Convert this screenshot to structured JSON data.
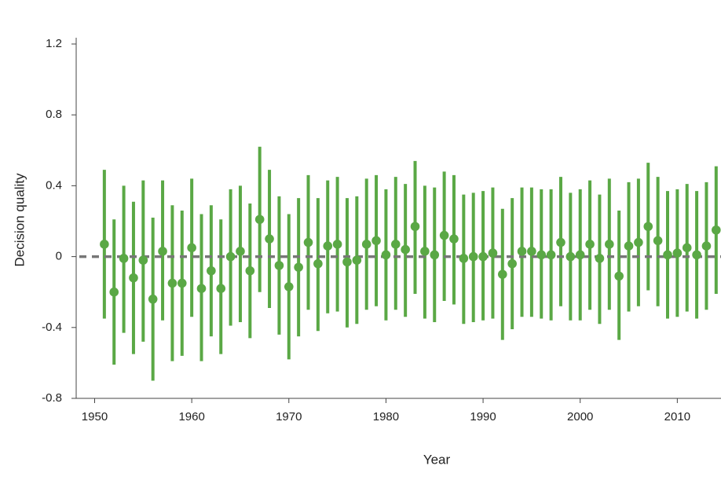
{
  "chart_data": {
    "type": "errorbar",
    "x_label": "Year",
    "y_label": "Decision quality",
    "x": [
      1951,
      1952,
      1953,
      1954,
      1955,
      1956,
      1957,
      1958,
      1959,
      1960,
      1961,
      1962,
      1963,
      1964,
      1965,
      1966,
      1967,
      1968,
      1969,
      1970,
      1971,
      1972,
      1973,
      1974,
      1975,
      1976,
      1977,
      1978,
      1979,
      1980,
      1981,
      1982,
      1983,
      1984,
      1985,
      1986,
      1987,
      1988,
      1989,
      1990,
      1991,
      1992,
      1993,
      1994,
      1995,
      1996,
      1997,
      1998,
      1999,
      2000,
      2001,
      2002,
      2003,
      2004,
      2005,
      2006,
      2007,
      2008,
      2009,
      2010,
      2011,
      2012,
      2013,
      2014
    ],
    "values": [
      0.07,
      -0.2,
      -0.01,
      -0.12,
      -0.02,
      -0.24,
      0.03,
      -0.15,
      -0.15,
      0.05,
      -0.18,
      -0.08,
      -0.18,
      0.0,
      0.03,
      -0.08,
      0.21,
      0.1,
      -0.05,
      -0.17,
      -0.06,
      0.08,
      -0.04,
      0.06,
      0.07,
      -0.03,
      -0.02,
      0.07,
      0.09,
      0.01,
      0.07,
      0.04,
      0.17,
      0.03,
      0.01,
      0.12,
      0.1,
      -0.01,
      0.0,
      0.0,
      0.02,
      -0.1,
      -0.04,
      0.03,
      0.03,
      0.01,
      0.01,
      0.08,
      0.0,
      0.01,
      0.07,
      -0.01,
      0.07,
      -0.11,
      0.06,
      0.08,
      0.17,
      0.09,
      0.01,
      0.02,
      0.05,
      0.01,
      0.06,
      0.15
    ],
    "lower": [
      -0.35,
      -0.61,
      -0.43,
      -0.55,
      -0.48,
      -0.7,
      -0.36,
      -0.59,
      -0.56,
      -0.34,
      -0.59,
      -0.45,
      -0.55,
      -0.39,
      -0.37,
      -0.46,
      -0.2,
      -0.29,
      -0.44,
      -0.58,
      -0.45,
      -0.3,
      -0.42,
      -0.32,
      -0.31,
      -0.4,
      -0.38,
      -0.3,
      -0.28,
      -0.36,
      -0.3,
      -0.34,
      -0.21,
      -0.35,
      -0.37,
      -0.25,
      -0.27,
      -0.38,
      -0.37,
      -0.36,
      -0.35,
      -0.47,
      -0.41,
      -0.34,
      -0.34,
      -0.35,
      -0.36,
      -0.28,
      -0.36,
      -0.36,
      -0.3,
      -0.38,
      -0.3,
      -0.47,
      -0.31,
      -0.28,
      -0.19,
      -0.28,
      -0.35,
      -0.34,
      -0.31,
      -0.35,
      -0.3,
      -0.21
    ],
    "upper": [
      0.49,
      0.21,
      0.4,
      0.31,
      0.43,
      0.22,
      0.43,
      0.29,
      0.26,
      0.44,
      0.24,
      0.29,
      0.21,
      0.38,
      0.4,
      0.3,
      0.62,
      0.49,
      0.34,
      0.24,
      0.33,
      0.46,
      0.33,
      0.43,
      0.45,
      0.33,
      0.34,
      0.44,
      0.46,
      0.38,
      0.45,
      0.41,
      0.54,
      0.4,
      0.39,
      0.48,
      0.46,
      0.35,
      0.36,
      0.37,
      0.39,
      0.27,
      0.33,
      0.39,
      0.39,
      0.38,
      0.38,
      0.45,
      0.36,
      0.38,
      0.43,
      0.35,
      0.44,
      0.26,
      0.42,
      0.44,
      0.53,
      0.45,
      0.37,
      0.38,
      0.41,
      0.37,
      0.42,
      0.51
    ],
    "color": "#5aa845",
    "reference_line": 0,
    "reference_color": "#777777",
    "xlim": [
      1948.1,
      2014.5
    ],
    "xticks": [
      1950,
      1960,
      1970,
      1980,
      1990,
      2000,
      2010
    ],
    "ylim": [
      -0.8,
      1.2
    ],
    "yticks": [
      -0.8,
      -0.4,
      0,
      0.4,
      0.8,
      1.2
    ]
  }
}
